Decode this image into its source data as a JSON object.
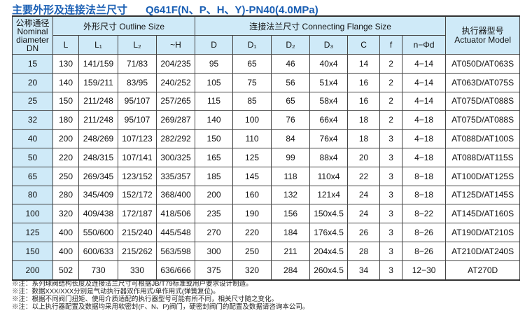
{
  "title": {
    "cn": "主要外形及连接法兰尺寸",
    "model": "Q641F(N、P、H、Y)-PN40(4.0MPa)"
  },
  "headers": {
    "dn": "公称通径\nNominal\ndiameter\nDN",
    "outline": "外形尺寸 Outline Size",
    "flange": "连接法兰尺寸 Connecting Flange Size",
    "actuator": "执行器型号\nActuator Model",
    "cols": [
      "L",
      "L₁",
      "L₂",
      "~H",
      "D",
      "D₁",
      "D₂",
      "D₃",
      "C",
      "f",
      "n−Φd"
    ]
  },
  "rows": [
    [
      "15",
      "130",
      "141/159",
      "71/83",
      "204/235",
      "95",
      "65",
      "46",
      "40x4",
      "14",
      "2",
      "4−14",
      "AT050D/AT063S"
    ],
    [
      "20",
      "140",
      "159/211",
      "83/95",
      "240/252",
      "105",
      "75",
      "56",
      "51x4",
      "16",
      "2",
      "4−14",
      "AT063D/AT075S"
    ],
    [
      "25",
      "150",
      "211/248",
      "95/107",
      "257/265",
      "115",
      "85",
      "65",
      "58x4",
      "16",
      "2",
      "4−14",
      "AT075D/AT088S"
    ],
    [
      "32",
      "180",
      "211/248",
      "95/107",
      "269/287",
      "140",
      "100",
      "76",
      "66x4",
      "18",
      "2",
      "4−18",
      "AT075D/AT088S"
    ],
    [
      "40",
      "200",
      "248/269",
      "107/123",
      "282/292",
      "150",
      "110",
      "84",
      "76x4",
      "18",
      "3",
      "4−18",
      "AT088D/AT100S"
    ],
    [
      "50",
      "220",
      "248/315",
      "107/141",
      "300/325",
      "165",
      "125",
      "99",
      "88x4",
      "20",
      "3",
      "4−18",
      "AT088D/AT115S"
    ],
    [
      "65",
      "250",
      "269/345",
      "123/152",
      "335/357",
      "185",
      "145",
      "118",
      "110x4",
      "22",
      "3",
      "8−18",
      "AT100D/AT125S"
    ],
    [
      "80",
      "280",
      "345/409",
      "152/172",
      "368/400",
      "200",
      "160",
      "132",
      "121x4",
      "24",
      "3",
      "8−18",
      "AT125D/AT145S"
    ],
    [
      "100",
      "320",
      "409/438",
      "172/187",
      "418/506",
      "235",
      "190",
      "156",
      "150x4.5",
      "24",
      "3",
      "8−22",
      "AT145D/AT160S"
    ],
    [
      "125",
      "400",
      "550/600",
      "215/240",
      "445/548",
      "270",
      "220",
      "184",
      "176x4.5",
      "26",
      "3",
      "8−26",
      "AT190D/AT210S"
    ],
    [
      "150",
      "400",
      "600/633",
      "215/262",
      "563/598",
      "300",
      "250",
      "211",
      "204x4.5",
      "28",
      "3",
      "8−26",
      "AT210D/AT240S"
    ],
    [
      "200",
      "502",
      "730",
      "330",
      "636/666",
      "375",
      "320",
      "284",
      "260x4.5",
      "34",
      "3",
      "12−30",
      "AT270D"
    ]
  ],
  "notes": [
    "※注：系列球阀结构长度及连接法兰尺寸可根据JB/T79标准或用户要求设计制造。",
    "※注：数据XXX/XXX分别是气动执行器双作用式/单作用式(弹簧复位)。",
    "※注：根据不同阀门扭矩、使用介质适配的执行器型号可能有所不同，相关尺寸随之变化。",
    "※注：以上执行器配置及数据均采用软密封(F、N、P)阀门，硬密封阀门的配置及数据请咨询本公司。"
  ]
}
